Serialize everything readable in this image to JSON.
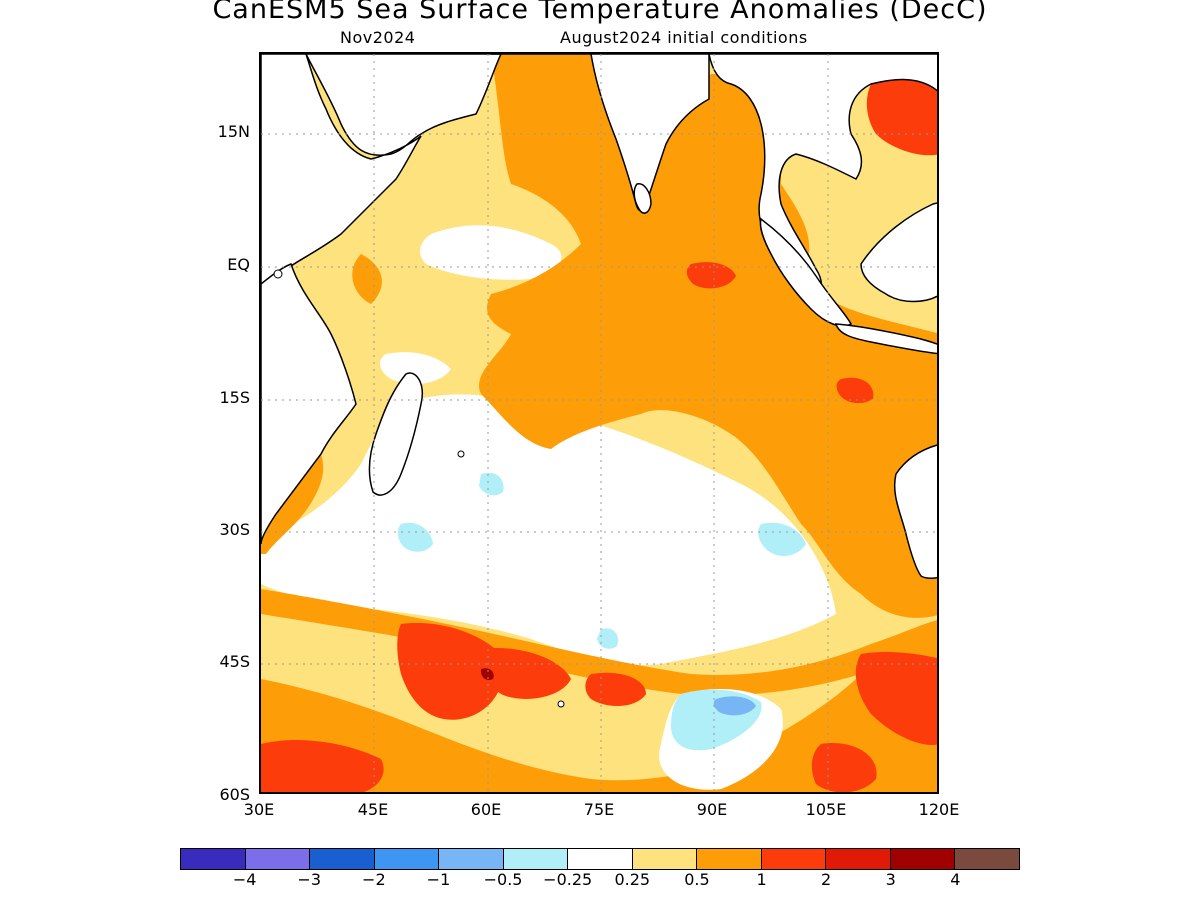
{
  "title": "CanESM5 Sea Surface Temperature Anomalies (DecC)",
  "subtitle_left": "Nov2024",
  "subtitle_right": "August2024 initial conditions",
  "lat_labels": [
    "15N",
    "EQ",
    "15S",
    "30S",
    "45S",
    "60S"
  ],
  "lon_labels": [
    "30E",
    "45E",
    "60E",
    "75E",
    "90E",
    "105E",
    "120E"
  ],
  "colorbar": {
    "colors": [
      "#3a2bbf",
      "#7b6ee8",
      "#1a5fd0",
      "#3f96f2",
      "#78b5f5",
      "#b0eef8",
      "#ffffff",
      "#fde27e",
      "#fd9e08",
      "#fd3c0c",
      "#e01a06",
      "#a10000",
      "#7a4a3e"
    ],
    "labels": [
      "−4",
      "−3",
      "−2",
      "−1",
      "−0.5",
      "−0.25",
      "0.25",
      "0.5",
      "1",
      "2",
      "3",
      "4"
    ]
  },
  "legend_colors": {
    "light_yellow": "#fde27e",
    "orange": "#fd9e08",
    "red_orange": "#fd3c0c",
    "red": "#e01a06",
    "dark_red": "#a10000",
    "light_blue": "#b0eef8",
    "blue": "#78b5f5",
    "land": "#ffffff"
  }
}
